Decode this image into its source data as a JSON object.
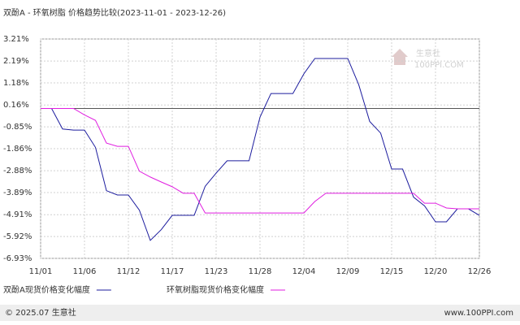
{
  "chart_data": {
    "type": "line",
    "title": "双酚A - 环氧树脂 价格趋势比较(2023-11-01 - 2023-12-26)",
    "categories": [
      "11/01",
      null,
      null,
      null,
      "11/06",
      null,
      null,
      null,
      "11/12",
      null,
      null,
      null,
      "11/17",
      null,
      null,
      null,
      "11/23",
      null,
      null,
      null,
      "11/28",
      null,
      null,
      null,
      "12/04",
      null,
      null,
      null,
      "12/09",
      null,
      null,
      null,
      "12/15",
      null,
      null,
      null,
      "12/20",
      null,
      null,
      null,
      "12/26"
    ],
    "series": [
      {
        "name": "双酚A现货价格变化幅度",
        "color": "#1c1c9e",
        "values": [
          0,
          0,
          -0.95,
          -1.0,
          -1.0,
          -1.8,
          -3.8,
          -4.0,
          -4.0,
          -4.7,
          -6.1,
          -5.6,
          -4.94,
          -4.94,
          -4.94,
          -3.6,
          -2.99,
          -2.42,
          -2.42,
          -2.42,
          -0.4,
          0.69,
          0.69,
          0.69,
          1.6,
          2.31,
          2.31,
          2.31,
          2.31,
          1.1,
          -0.6,
          -1.14,
          -2.8,
          -2.8,
          -4.1,
          -4.5,
          -5.24,
          -5.24,
          -4.64,
          -4.64,
          -4.94
        ]
      },
      {
        "name": "环氧树脂现货价格变化幅度",
        "color": "#e01ee0",
        "values": [
          0,
          0,
          0,
          0,
          -0.3,
          -0.55,
          -1.6,
          -1.75,
          -1.75,
          -2.9,
          -3.17,
          -3.4,
          -3.62,
          -3.92,
          -3.92,
          -4.83,
          -4.83,
          -4.83,
          -4.83,
          -4.83,
          -4.83,
          -4.83,
          -4.83,
          -4.83,
          -4.83,
          -4.3,
          -3.92,
          -3.92,
          -3.92,
          -3.92,
          -3.92,
          -3.92,
          -3.92,
          -3.92,
          -3.92,
          -4.38,
          -4.38,
          -4.6,
          -4.64,
          -4.64,
          -4.64
        ]
      }
    ],
    "ylim": [
      -6.93,
      3.21
    ],
    "yticks": [
      {
        "value": 3.21,
        "label": "3.21%"
      },
      {
        "value": 2.19,
        "label": "2.19%"
      },
      {
        "value": 1.18,
        "label": "1.18%"
      },
      {
        "value": 0.16,
        "label": "0.16%"
      },
      {
        "value": -0.85,
        "label": "-0.85%"
      },
      {
        "value": -1.86,
        "label": "-1.86%"
      },
      {
        "value": -2.88,
        "label": "-2.88%"
      },
      {
        "value": -3.89,
        "label": "-3.89%"
      },
      {
        "value": -4.91,
        "label": "-4.91%"
      },
      {
        "value": -5.92,
        "label": "-5.92%"
      },
      {
        "value": -6.93,
        "label": "-6.93%"
      }
    ],
    "grid": true,
    "watermark": {
      "name": "生意社",
      "url": "100PPI.COM"
    },
    "footer": {
      "left": "© 2025.07 生意社",
      "right": "www.100PPI.com"
    }
  }
}
